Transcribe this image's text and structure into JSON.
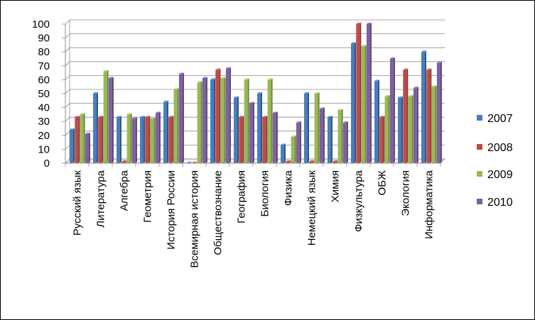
{
  "chart_data": {
    "type": "bar",
    "categories": [
      "Русский язык",
      "Литература",
      "Алгебра",
      "Геометрия",
      "История России",
      "Всемирная история",
      "Обществознание",
      "География",
      "Биология",
      "Физика",
      "Немецкий язык",
      "Химия",
      "Физкультура",
      "ОБЖ",
      "Экология",
      "Информатика"
    ],
    "series": [
      {
        "name": "2007",
        "color": "#4a7ebb",
        "values": [
          24,
          50,
          33,
          33,
          44,
          0,
          60,
          47,
          50,
          13,
          50,
          33,
          86,
          59,
          47,
          80
        ]
      },
      {
        "name": "2008",
        "color": "#be4b48",
        "values": [
          33,
          33,
          1,
          33,
          33,
          0,
          67,
          33,
          33,
          1,
          1,
          1,
          100,
          33,
          67,
          67
        ]
      },
      {
        "name": "2009",
        "color": "#98b954",
        "values": [
          35,
          66,
          35,
          32,
          53,
          58,
          61,
          60,
          60,
          19,
          50,
          38,
          84,
          48,
          48,
          55
        ]
      },
      {
        "name": "2010",
        "color": "#7d60a0",
        "values": [
          21,
          61,
          32,
          36,
          64,
          61,
          68,
          43,
          36,
          29,
          39,
          29,
          100,
          75,
          54,
          72
        ]
      }
    ],
    "yticks": [
      "0",
      "10",
      "20",
      "30",
      "40",
      "50",
      "60",
      "70",
      "80",
      "90",
      "100"
    ],
    "ylim": [
      0,
      100
    ],
    "grid": true,
    "legend": "right"
  }
}
